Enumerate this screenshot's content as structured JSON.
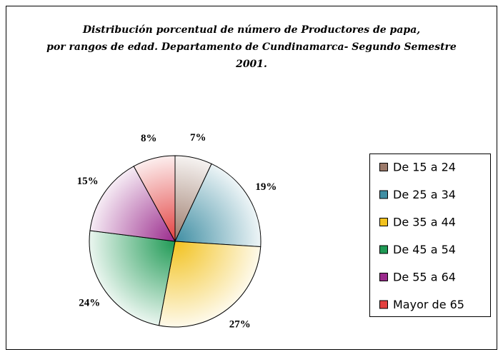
{
  "chart_data": {
    "type": "pie",
    "title": [
      "Distribución porcentual de número de Productores de papa,",
      "por rangos de edad.  Departamento de Cundinamarca- Segundo Semestre",
      "2001."
    ],
    "categories": [
      "De 15 a 24",
      "De 25 a 34",
      "De 35 a 44",
      "De 45 a 54",
      "De 55 a 64",
      "Mayor de 65"
    ],
    "values": [
      7,
      19,
      27,
      24,
      15,
      8
    ],
    "value_labels": [
      "7%",
      "19%",
      "27%",
      "24%",
      "15%",
      "8%"
    ],
    "colors": [
      "#9c7a6a",
      "#3f8ea3",
      "#f2c21f",
      "#1f9a55",
      "#9a2a8c",
      "#e2403f"
    ],
    "legend": "right"
  }
}
